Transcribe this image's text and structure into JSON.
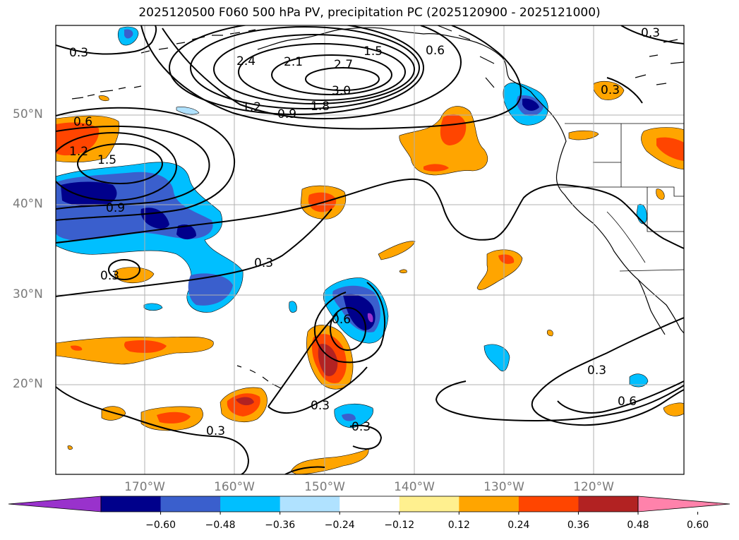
{
  "title": "2025120500 F060 500 hPa PV, precipitation PC (2025120900 - 2025121000)",
  "lat_labels": [
    "50°N",
    "40°N",
    "30°N",
    "20°N"
  ],
  "lon_labels": [
    "170°W",
    "160°W",
    "150°W",
    "140°W",
    "130°W",
    "120°W"
  ],
  "contour_labels": [
    "0.3",
    "0.6",
    "1.2",
    "1.5",
    "0.9",
    "2.4",
    "2.1",
    "2.7",
    "3.0",
    "1.5",
    "1.2",
    "0.9",
    "1.8",
    "0.6",
    "0.3",
    "0.3",
    "0.3",
    "0.3",
    "0.6",
    "0.3",
    "0.3",
    "0.3",
    "0.6",
    "0.3"
  ],
  "colorbar": {
    "ticks": [
      "−0.60",
      "−0.48",
      "−0.36",
      "−0.24",
      "−0.12",
      "0.12",
      "0.24",
      "0.36",
      "0.48",
      "0.60"
    ],
    "colors": [
      "#9932cc",
      "#00008b",
      "#3a5fcd",
      "#00bfff",
      "#b0e2ff",
      "#ffffff",
      "#fff08f",
      "#ffa500",
      "#ff4500",
      "#b22222",
      "#ff82ab"
    ]
  }
}
